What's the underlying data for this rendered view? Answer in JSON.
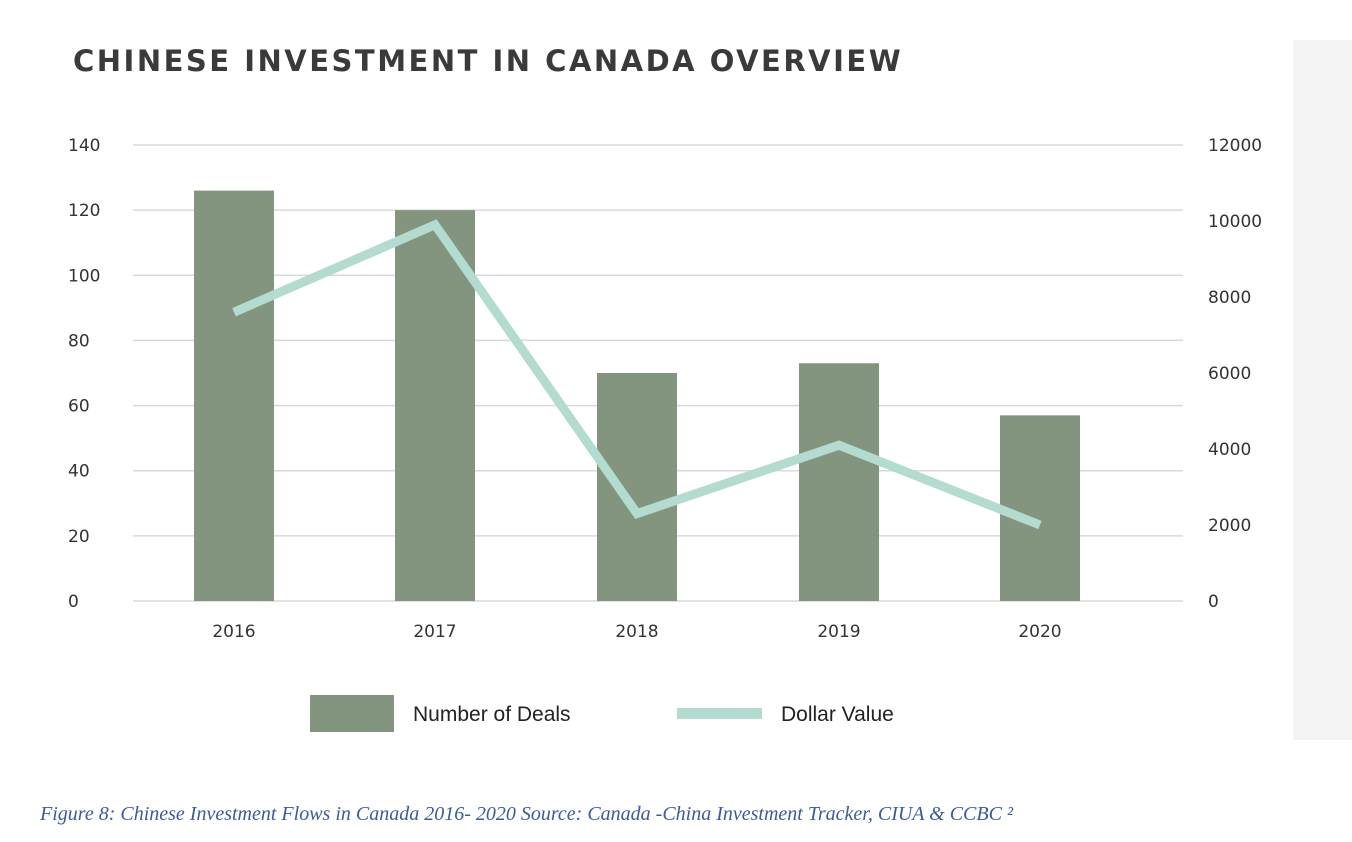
{
  "chart_data": {
    "type": "bar",
    "title": "CHINESE INVESTMENT IN CANADA OVERVIEW",
    "categories": [
      "2016",
      "2017",
      "2018",
      "2019",
      "2020"
    ],
    "series": [
      {
        "name": "Number of Deals",
        "type": "bar",
        "axis": "left",
        "color": "#84957f",
        "values": [
          126,
          120,
          70,
          73,
          57
        ]
      },
      {
        "name": "Dollar Value",
        "type": "line",
        "axis": "right",
        "color": "#b3dbcf",
        "values": [
          7600,
          9900,
          2300,
          4100,
          2000
        ]
      }
    ],
    "left_axis": {
      "ylim": [
        0,
        140
      ],
      "ticks": [
        "0",
        "20",
        "40",
        "60",
        "80",
        "100",
        "120",
        "140"
      ]
    },
    "right_axis": {
      "ylim": [
        0,
        12000
      ],
      "ticks": [
        "0",
        "2000",
        "4000",
        "6000",
        "8000",
        "10000",
        "12000"
      ]
    },
    "grid": true,
    "legend_position": "bottom"
  },
  "caption": "Figure 8: Chinese Investment Flows in Canada 2016- 2020   Source: Canada -China Investment Tracker, CIUA & CCBC ²"
}
